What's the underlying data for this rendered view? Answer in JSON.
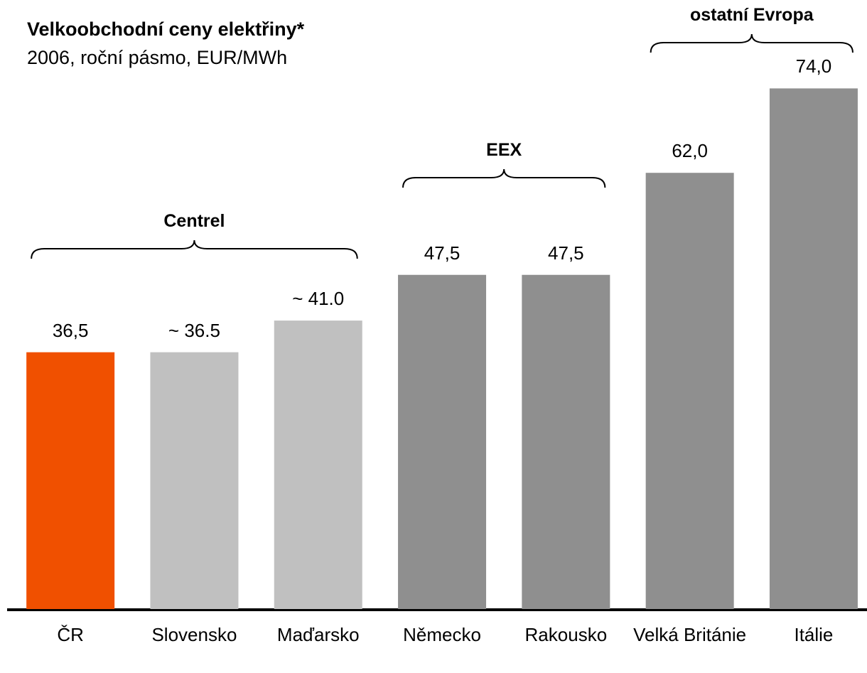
{
  "chart_data": {
    "type": "bar",
    "title": "Velkoobchodní ceny elektřiny*",
    "subtitle": "2006, roční pásmo, EUR/MWh",
    "categories": [
      "ČR",
      "Slovensko",
      "Maďarsko",
      "Německo",
      "Rakousko",
      "Velká Británie",
      "Itálie"
    ],
    "values": [
      36.5,
      36.5,
      41.0,
      47.5,
      47.5,
      62.0,
      74.0
    ],
    "value_labels": [
      "36,5",
      "~ 36.5",
      "~ 41.0",
      "47,5",
      "47,5",
      "62,0",
      "74,0"
    ],
    "colors": [
      "#f05000",
      "#c0c0c0",
      "#c0c0c0",
      "#8f8f8f",
      "#8f8f8f",
      "#8f8f8f",
      "#8f8f8f"
    ],
    "groups": [
      {
        "label": "Centrel",
        "members": [
          "ČR",
          "Slovensko",
          "Maďarsko"
        ]
      },
      {
        "label": "EEX",
        "members": [
          "Německo",
          "Rakousko"
        ]
      },
      {
        "label": "ostatní Evropa",
        "members": [
          "Velká Británie",
          "Itálie"
        ]
      }
    ]
  }
}
